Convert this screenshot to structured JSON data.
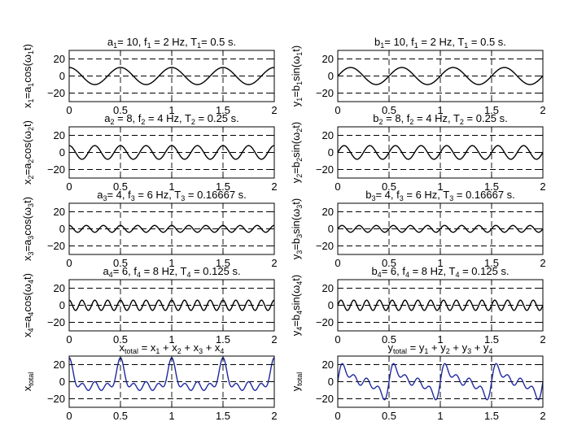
{
  "chart_data": [
    {
      "id": "x1",
      "type": "line",
      "func": "cos",
      "terms": [
        [
          10,
          2
        ]
      ],
      "color": "#000000",
      "title": [
        [
          "a",
          ""
        ],
        [
          "1",
          "sub"
        ],
        [
          "= 10, f",
          ""
        ],
        [
          "1",
          "sub"
        ],
        [
          " = 2 Hz, T",
          ""
        ],
        [
          "1",
          "sub"
        ],
        [
          "= 0.5 s.",
          ""
        ]
      ],
      "ylabel": [
        [
          "x",
          ""
        ],
        [
          "1",
          "sub"
        ],
        [
          "=a",
          ""
        ],
        [
          "1",
          "sub"
        ],
        [
          "cos(ω",
          ""
        ],
        [
          "1",
          "sub"
        ],
        [
          "t)",
          ""
        ]
      ],
      "xlim": [
        0,
        2
      ],
      "ylim": [
        -30,
        30
      ],
      "xticks": [
        0,
        0.5,
        1,
        1.5,
        2
      ],
      "xtick_labels": [
        "0",
        "0.5",
        "1",
        "1.5",
        "2"
      ],
      "yticks": [
        20,
        0,
        -20
      ],
      "ytick_labels": [
        "20",
        "0",
        "−20"
      ],
      "grid": true
    },
    {
      "id": "y1",
      "type": "line",
      "func": "sin",
      "terms": [
        [
          10,
          2
        ]
      ],
      "color": "#000000",
      "title": [
        [
          "b",
          ""
        ],
        [
          "1",
          "sub"
        ],
        [
          "= 10, f",
          ""
        ],
        [
          "1",
          "sub"
        ],
        [
          " = 2 Hz, T",
          ""
        ],
        [
          "1",
          "sub"
        ],
        [
          " = 0.5 s.",
          ""
        ]
      ],
      "ylabel": [
        [
          "y",
          ""
        ],
        [
          "1",
          "sub"
        ],
        [
          "=b",
          ""
        ],
        [
          "1",
          "sub"
        ],
        [
          "sin(ω",
          ""
        ],
        [
          "1",
          "sub"
        ],
        [
          "t)",
          ""
        ]
      ],
      "xlim": [
        0,
        2
      ],
      "ylim": [
        -30,
        30
      ],
      "xticks": [
        0,
        0.5,
        1,
        1.5,
        2
      ],
      "xtick_labels": [
        "0",
        "0.5",
        "1",
        "1.5",
        "2"
      ],
      "yticks": [
        20,
        0,
        -20
      ],
      "ytick_labels": [
        "20",
        "0",
        "−20"
      ],
      "grid": true
    },
    {
      "id": "x2",
      "type": "line",
      "func": "cos",
      "terms": [
        [
          8,
          4
        ]
      ],
      "color": "#000000",
      "title": [
        [
          "a",
          ""
        ],
        [
          "2",
          "sub"
        ],
        [
          " = 8, f",
          ""
        ],
        [
          "2",
          "sub"
        ],
        [
          " = 4 Hz, T",
          ""
        ],
        [
          "2",
          "sub"
        ],
        [
          " = 0.25 s.",
          ""
        ]
      ],
      "ylabel": [
        [
          "x",
          ""
        ],
        [
          "2",
          "sub"
        ],
        [
          "=a",
          ""
        ],
        [
          "2",
          "sub"
        ],
        [
          "cos(ω",
          ""
        ],
        [
          "2",
          "sub"
        ],
        [
          "t)",
          ""
        ]
      ],
      "xlim": [
        0,
        2
      ],
      "ylim": [
        -30,
        30
      ],
      "xticks": [
        0,
        0.5,
        1,
        1.5,
        2
      ],
      "xtick_labels": [
        "0",
        "0.5",
        "1",
        "1.5",
        "2"
      ],
      "yticks": [
        20,
        0,
        -20
      ],
      "ytick_labels": [
        "20",
        "0",
        "−20"
      ],
      "grid": true
    },
    {
      "id": "y2",
      "type": "line",
      "func": "sin",
      "terms": [
        [
          8,
          4
        ]
      ],
      "color": "#000000",
      "title": [
        [
          "b",
          ""
        ],
        [
          "2",
          "sub"
        ],
        [
          " = 8, f",
          ""
        ],
        [
          "2",
          "sub"
        ],
        [
          " = 4 Hz, T",
          ""
        ],
        [
          "2",
          "sub"
        ],
        [
          " = 0.25 s.",
          ""
        ]
      ],
      "ylabel": [
        [
          "y",
          ""
        ],
        [
          "2",
          "sub"
        ],
        [
          "=b",
          ""
        ],
        [
          "2",
          "sub"
        ],
        [
          "sin(ω",
          ""
        ],
        [
          "2",
          "sub"
        ],
        [
          "t)",
          ""
        ]
      ],
      "xlim": [
        0,
        2
      ],
      "ylim": [
        -30,
        30
      ],
      "xticks": [
        0,
        0.5,
        1,
        1.5,
        2
      ],
      "xtick_labels": [
        "0",
        "0.5",
        "1",
        "1.5",
        "2"
      ],
      "yticks": [
        20,
        0,
        -20
      ],
      "ytick_labels": [
        "20",
        "0",
        "−20"
      ],
      "grid": true
    },
    {
      "id": "x3",
      "type": "line",
      "func": "cos",
      "terms": [
        [
          4,
          6
        ]
      ],
      "color": "#000000",
      "title": [
        [
          "a",
          ""
        ],
        [
          "3",
          "sub"
        ],
        [
          "= 4, f",
          ""
        ],
        [
          "3",
          "sub"
        ],
        [
          " = 6 Hz, T",
          ""
        ],
        [
          "3",
          "sub"
        ],
        [
          " = 0.16667 s.",
          ""
        ]
      ],
      "ylabel": [
        [
          "x",
          ""
        ],
        [
          "3",
          "sub"
        ],
        [
          "=a",
          ""
        ],
        [
          "3",
          "sub"
        ],
        [
          "cos(ω",
          ""
        ],
        [
          "3",
          "sub"
        ],
        [
          "t)",
          ""
        ]
      ],
      "xlim": [
        0,
        2
      ],
      "ylim": [
        -30,
        30
      ],
      "xticks": [
        0,
        0.5,
        1,
        1.5,
        2
      ],
      "xtick_labels": [
        "0",
        "0.5",
        "1",
        "1.5",
        "2"
      ],
      "yticks": [
        20,
        0,
        -20
      ],
      "ytick_labels": [
        "20",
        "0",
        "−20"
      ],
      "grid": true
    },
    {
      "id": "y3",
      "type": "line",
      "func": "sin",
      "terms": [
        [
          4,
          6
        ]
      ],
      "color": "#000000",
      "title": [
        [
          "b",
          ""
        ],
        [
          "3",
          "sub"
        ],
        [
          "= 4, f",
          ""
        ],
        [
          "3",
          "sub"
        ],
        [
          " = 6 Hz, T",
          ""
        ],
        [
          "3",
          "sub"
        ],
        [
          " = 0.16667 s.",
          ""
        ]
      ],
      "ylabel": [
        [
          "y",
          ""
        ],
        [
          "3",
          "sub"
        ],
        [
          "=b",
          ""
        ],
        [
          "3",
          "sub"
        ],
        [
          "sin(ω",
          ""
        ],
        [
          "3",
          "sub"
        ],
        [
          "t)",
          ""
        ]
      ],
      "xlim": [
        0,
        2
      ],
      "ylim": [
        -30,
        30
      ],
      "xticks": [
        0,
        0.5,
        1,
        1.5,
        2
      ],
      "xtick_labels": [
        "0",
        "0.5",
        "1",
        "1.5",
        "2"
      ],
      "yticks": [
        20,
        0,
        -20
      ],
      "ytick_labels": [
        "20",
        "0",
        "−20"
      ],
      "grid": true
    },
    {
      "id": "x4",
      "type": "line",
      "func": "cos",
      "terms": [
        [
          6,
          8
        ]
      ],
      "color": "#000000",
      "title": [
        [
          "a",
          ""
        ],
        [
          "4",
          "sub"
        ],
        [
          "= 6, f",
          ""
        ],
        [
          "4",
          "sub"
        ],
        [
          " = 8 Hz, T",
          ""
        ],
        [
          "4",
          "sub"
        ],
        [
          " = 0.125 s.",
          ""
        ]
      ],
      "ylabel": [
        [
          "x",
          ""
        ],
        [
          "4",
          "sub"
        ],
        [
          "=a",
          ""
        ],
        [
          "4",
          "sub"
        ],
        [
          "cos(ω",
          ""
        ],
        [
          "4",
          "sub"
        ],
        [
          "t)",
          ""
        ]
      ],
      "xlim": [
        0,
        2
      ],
      "ylim": [
        -30,
        30
      ],
      "xticks": [
        0,
        0.5,
        1,
        1.5,
        2
      ],
      "xtick_labels": [
        "0",
        "0.5",
        "1",
        "1.5",
        "2"
      ],
      "yticks": [
        20,
        0,
        -20
      ],
      "ytick_labels": [
        "20",
        "0",
        "−20"
      ],
      "grid": true
    },
    {
      "id": "y4",
      "type": "line",
      "func": "sin",
      "terms": [
        [
          6,
          8
        ]
      ],
      "color": "#000000",
      "title": [
        [
          "b",
          ""
        ],
        [
          "4",
          "sub"
        ],
        [
          "= 6, f",
          ""
        ],
        [
          "4",
          "sub"
        ],
        [
          " = 8 Hz, T",
          ""
        ],
        [
          "4",
          "sub"
        ],
        [
          " = 0.125 s.",
          ""
        ]
      ],
      "ylabel": [
        [
          "y",
          ""
        ],
        [
          "4",
          "sub"
        ],
        [
          "=b",
          ""
        ],
        [
          "4",
          "sub"
        ],
        [
          "sin(ω",
          ""
        ],
        [
          "4",
          "sub"
        ],
        [
          "t)",
          ""
        ]
      ],
      "xlim": [
        0,
        2
      ],
      "ylim": [
        -30,
        30
      ],
      "xticks": [
        0,
        0.5,
        1,
        1.5,
        2
      ],
      "xtick_labels": [
        "0",
        "0.5",
        "1",
        "1.5",
        "2"
      ],
      "yticks": [
        20,
        0,
        -20
      ],
      "ytick_labels": [
        "20",
        "0",
        "−20"
      ],
      "grid": true
    },
    {
      "id": "xtotal",
      "type": "line",
      "func": "cos",
      "terms": [
        [
          10,
          2
        ],
        [
          8,
          4
        ],
        [
          4,
          6
        ],
        [
          6,
          8
        ]
      ],
      "color": "#1f2a9e",
      "title": [
        [
          "x",
          ""
        ],
        [
          "total",
          "sub"
        ],
        [
          " = x",
          ""
        ],
        [
          "1",
          "sub"
        ],
        [
          " + x",
          ""
        ],
        [
          "2",
          "sub"
        ],
        [
          " + x",
          ""
        ],
        [
          "3",
          "sub"
        ],
        [
          " + x",
          ""
        ],
        [
          "4",
          "sub"
        ]
      ],
      "ylabel": [
        [
          "x",
          ""
        ],
        [
          "total",
          "sub"
        ]
      ],
      "xlim": [
        0,
        2
      ],
      "ylim": [
        -30,
        30
      ],
      "xticks": [
        0,
        0.5,
        1,
        1.5,
        2
      ],
      "xtick_labels": [
        "0",
        "0.5",
        "1",
        "1.5",
        "2"
      ],
      "yticks": [
        20,
        0,
        -20
      ],
      "ytick_labels": [
        "20",
        "0",
        "−20"
      ],
      "grid": true
    },
    {
      "id": "ytotal",
      "type": "line",
      "func": "sin",
      "terms": [
        [
          10,
          2
        ],
        [
          8,
          4
        ],
        [
          4,
          6
        ],
        [
          6,
          8
        ]
      ],
      "color": "#1f2a9e",
      "title": [
        [
          "y",
          ""
        ],
        [
          "total",
          "sub"
        ],
        [
          " = y",
          ""
        ],
        [
          "1",
          "sub"
        ],
        [
          " + y",
          ""
        ],
        [
          "2",
          "sub"
        ],
        [
          " + y",
          ""
        ],
        [
          "3",
          "sub"
        ],
        [
          " + y",
          ""
        ],
        [
          "4",
          "sub"
        ]
      ],
      "ylabel": [
        [
          "y",
          ""
        ],
        [
          "total",
          "sub"
        ]
      ],
      "xlim": [
        0,
        2
      ],
      "ylim": [
        -30,
        30
      ],
      "xticks": [
        0,
        0.5,
        1,
        1.5,
        2
      ],
      "xtick_labels": [
        "0",
        "0.5",
        "1",
        "1.5",
        "2"
      ],
      "yticks": [
        20,
        0,
        -20
      ],
      "ytick_labels": [
        "20",
        "0",
        "−20"
      ],
      "grid": true
    }
  ]
}
